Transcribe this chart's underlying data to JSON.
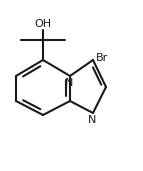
{
  "bg_color": "#ffffff",
  "line_color": "#1a1a1a",
  "line_width": 1.5,
  "oh_label": "OH",
  "br_label": "Br",
  "n_label": "N",
  "font_size_labels": 8.0,
  "fig_w": 1.43,
  "fig_h": 1.71,
  "dpi": 100
}
